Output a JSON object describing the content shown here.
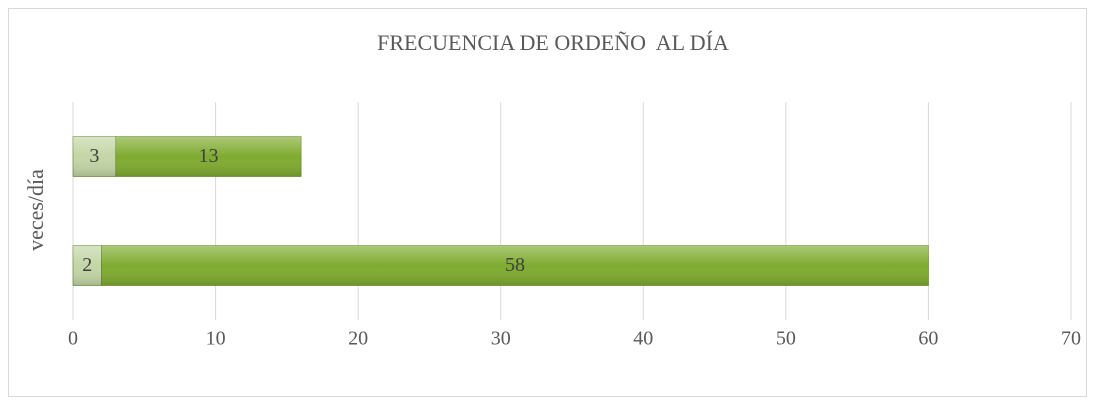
{
  "chart_data": {
    "type": "stacked-bar-horizontal",
    "title": "FRECUENCIA DE ORDEÑO  AL DÍA",
    "ylabel": "veces/día",
    "categories": [
      null,
      null
    ],
    "series": [
      {
        "color": "#c3d6a6",
        "values": [
          3,
          2
        ]
      },
      {
        "color": "#7fab30",
        "values": [
          13,
          58
        ]
      }
    ],
    "xlim": [
      0,
      70
    ],
    "xticks": [
      0,
      10,
      20,
      30,
      40,
      50,
      60,
      70
    ],
    "grid": true
  }
}
